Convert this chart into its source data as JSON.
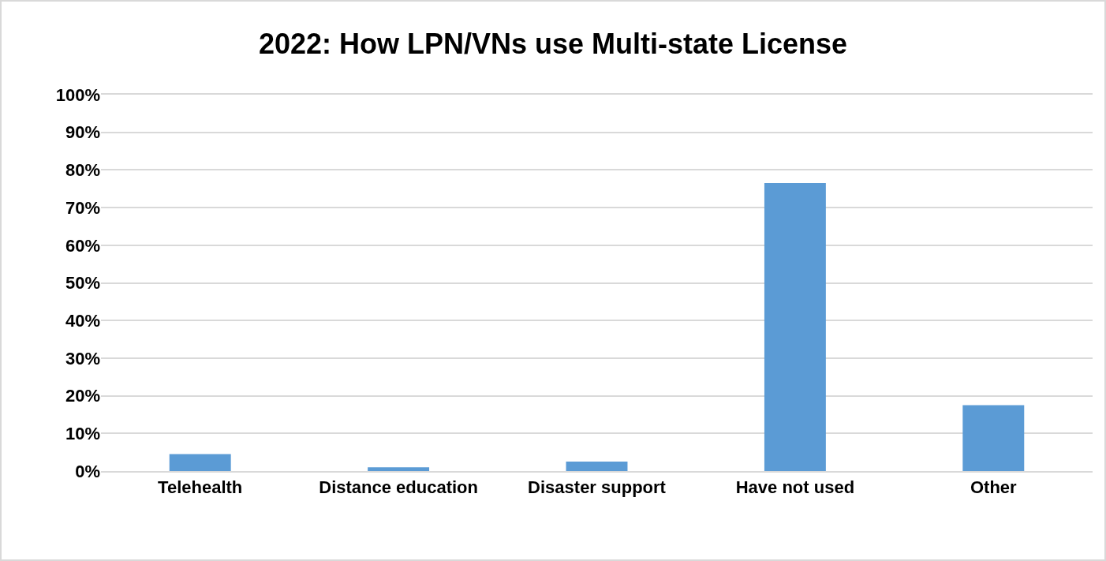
{
  "chart_data": {
    "type": "bar",
    "title": "2022: How LPN/VNs use Multi-state License",
    "categories": [
      "Telehealth",
      "Distance education",
      "Disaster support",
      "Have not used",
      "Other"
    ],
    "values": [
      4.5,
      1,
      2.5,
      76.5,
      17.5
    ],
    "color": "#5b9bd5",
    "ylim": [
      0,
      100
    ],
    "yticks": [
      {
        "value": 0,
        "label": "0%"
      },
      {
        "value": 10,
        "label": "10%"
      },
      {
        "value": 20,
        "label": "20%"
      },
      {
        "value": 30,
        "label": "30%"
      },
      {
        "value": 40,
        "label": "40%"
      },
      {
        "value": 50,
        "label": "50%"
      },
      {
        "value": 60,
        "label": "60%"
      },
      {
        "value": 70,
        "label": "70%"
      },
      {
        "value": 80,
        "label": "80%"
      },
      {
        "value": 90,
        "label": "90%"
      },
      {
        "value": 100,
        "label": "100%"
      }
    ],
    "grid": "y"
  }
}
